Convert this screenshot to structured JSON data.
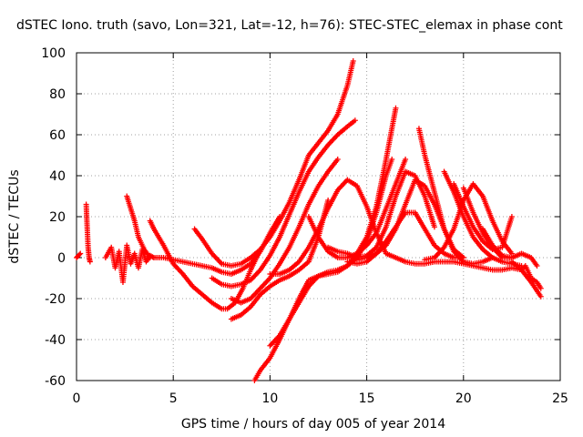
{
  "chart_data": {
    "type": "scatter",
    "title": "dSTEC Iono. truth (savo, Lon=321, Lat=-12, h=76): STEC-STEC_elemax in phase cont",
    "xlabel": "GPS time / hours of day 005 of year 2014",
    "ylabel": "dSTEC  / TECUs",
    "xlim": [
      0,
      25
    ],
    "ylim": [
      -60,
      100
    ],
    "xticks": [
      "0",
      "5",
      "10",
      "15",
      "20",
      "25"
    ],
    "yticks": [
      "-60",
      "-40",
      "-20",
      "0",
      "20",
      "40",
      "60",
      "80",
      "100"
    ],
    "grid": true,
    "marker": "plus",
    "color": "#ff0000",
    "series": [
      {
        "x": [
          0.0,
          0.1,
          0.2
        ],
        "y": [
          0,
          1,
          2
        ]
      },
      {
        "x": [
          0.5,
          0.55,
          0.6,
          0.65,
          0.7
        ],
        "y": [
          26,
          15,
          5,
          0,
          -2
        ]
      },
      {
        "x": [
          1.5,
          1.8,
          2.0,
          2.2,
          2.4,
          2.6,
          2.8,
          3.0,
          3.2,
          3.4,
          3.6,
          3.8,
          4.0
        ],
        "y": [
          0,
          5,
          -5,
          3,
          -12,
          6,
          -3,
          2,
          -5,
          4,
          -2,
          1,
          0
        ]
      },
      {
        "x": [
          2.6,
          2.8,
          3.0,
          3.2,
          3.5,
          3.8
        ],
        "y": [
          30,
          24,
          18,
          10,
          4,
          0
        ]
      },
      {
        "x": [
          3.8,
          4.0,
          4.5,
          5.0,
          5.5,
          6.0,
          6.5,
          7.0,
          7.5,
          7.8,
          8.2,
          8.6,
          9.0,
          9.4
        ],
        "y": [
          18,
          14,
          6,
          -3,
          -8,
          -14,
          -18,
          -22,
          -25,
          -25,
          -22,
          -15,
          -6,
          2
        ]
      },
      {
        "x": [
          4.0,
          4.5,
          5.0,
          5.5,
          6.0,
          6.5,
          7.0,
          7.5,
          8.0,
          8.5,
          9.0,
          9.5,
          10.0,
          10.5
        ],
        "y": [
          0,
          0,
          -1,
          -2,
          -3,
          -4,
          -5,
          -7,
          -8,
          -6,
          -3,
          3,
          12,
          20
        ]
      },
      {
        "x": [
          6.1,
          6.5,
          7.0,
          7.5,
          8.0,
          8.5,
          9.0,
          9.5,
          10.0,
          10.5,
          11.0,
          11.5,
          12.0,
          12.5,
          13.0,
          13.5,
          14.0,
          14.3
        ],
        "y": [
          14,
          9,
          2,
          -3,
          -4,
          -3,
          0,
          4,
          10,
          18,
          27,
          38,
          50,
          56,
          62,
          70,
          84,
          96
        ]
      },
      {
        "x": [
          7.0,
          7.5,
          8.0,
          8.5,
          9.0,
          9.5,
          10.0,
          10.5,
          11.0,
          11.5,
          12.0,
          12.5,
          13.0,
          13.5,
          14.0,
          14.4
        ],
        "y": [
          -10,
          -13,
          -14,
          -13,
          -11,
          -6,
          1,
          10,
          21,
          32,
          42,
          49,
          55,
          60,
          64,
          67
        ]
      },
      {
        "x": [
          8.0,
          8.5,
          9.0,
          9.5,
          10.0,
          10.5,
          11.0,
          11.5,
          12.0,
          12.5,
          13.0,
          13.5
        ],
        "y": [
          -20,
          -22,
          -20,
          -15,
          -10,
          -3,
          5,
          15,
          26,
          35,
          42,
          48
        ]
      },
      {
        "x": [
          8.0,
          8.5,
          9.0,
          9.5,
          10.0,
          10.5,
          11.0,
          11.5,
          12.0,
          12.5,
          13.0
        ],
        "y": [
          -30,
          -28,
          -24,
          -18,
          -14,
          -11,
          -9,
          -6,
          -2,
          10,
          28
        ]
      },
      {
        "x": [
          9.2,
          9.5,
          10.0,
          10.5,
          11.0,
          11.5,
          12.0,
          12.5,
          13.0,
          13.5,
          14.0,
          14.5,
          15.0,
          15.5,
          16.0,
          16.3
        ],
        "y": [
          -60,
          -55,
          -49,
          -40,
          -30,
          -20,
          -11,
          -9,
          -8,
          -7,
          -4,
          0,
          8,
          22,
          40,
          48
        ]
      },
      {
        "x": [
          10.0,
          10.5,
          11.0,
          11.5,
          12.0,
          12.5,
          13.0,
          13.5,
          14.0,
          14.5,
          15.0,
          15.5,
          16.0,
          16.5
        ],
        "y": [
          -43,
          -38,
          -30,
          -22,
          -14,
          -9,
          -7,
          -6,
          -4,
          2,
          10,
          25,
          48,
          73
        ]
      },
      {
        "x": [
          10.0,
          10.5,
          11.0,
          11.5,
          12.0,
          12.5,
          13.0,
          13.5,
          14.0,
          14.5,
          15.0,
          15.5,
          16.0
        ],
        "y": [
          -8,
          -8,
          -6,
          -2,
          5,
          14,
          24,
          33,
          38,
          35,
          25,
          12,
          2
        ]
      },
      {
        "x": [
          12.0,
          12.5,
          13.0,
          13.5,
          14.0,
          14.5,
          15.0,
          15.5,
          16.0,
          16.5,
          17.0
        ],
        "y": [
          20,
          10,
          3,
          0,
          0,
          2,
          6,
          12,
          24,
          36,
          48
        ]
      },
      {
        "x": [
          13.0,
          13.5,
          14.0,
          14.5,
          15.0,
          15.5,
          16.0,
          16.5,
          17.0,
          17.5,
          18.0,
          18.5
        ],
        "y": [
          5,
          3,
          2,
          0,
          1,
          5,
          15,
          30,
          42,
          40,
          30,
          15
        ]
      },
      {
        "x": [
          14.0,
          14.5,
          15.0,
          15.5,
          16.0,
          16.5,
          17.0,
          17.5,
          18.0,
          18.5,
          19.0,
          19.5,
          20.0
        ],
        "y": [
          -2,
          -3,
          -2,
          2,
          8,
          15,
          22,
          22,
          14,
          6,
          2,
          0,
          0
        ]
      },
      {
        "x": [
          14.5,
          15.0,
          15.5,
          16.0,
          16.5,
          17.0,
          17.5,
          18.0,
          18.5,
          19.0,
          19.5,
          20.0
        ],
        "y": [
          -1,
          0,
          2,
          6,
          14,
          26,
          38,
          35,
          26,
          14,
          4,
          0
        ]
      },
      {
        "x": [
          16.0,
          16.5,
          17.0,
          17.5,
          18.0,
          18.5,
          19.0,
          19.5,
          20.0,
          20.5,
          21.0,
          21.5,
          22.0,
          22.5,
          23.0,
          23.5,
          24.0
        ],
        "y": [
          2,
          0,
          -2,
          -3,
          -3,
          -2,
          -2,
          -2,
          -3,
          -4,
          -5,
          -6,
          -6,
          -5,
          -6,
          -12,
          -19
        ]
      },
      {
        "x": [
          17.7,
          18.0,
          18.5,
          19.0,
          19.5,
          20.0,
          20.5,
          21.0,
          21.5
        ],
        "y": [
          63,
          50,
          32,
          14,
          3,
          -2,
          -3,
          -2,
          0
        ]
      },
      {
        "x": [
          18.0,
          18.5,
          19.0,
          19.5,
          20.0,
          20.5,
          21.0,
          21.5,
          22.0,
          22.5
        ],
        "y": [
          -1,
          0,
          5,
          14,
          28,
          36,
          30,
          18,
          8,
          2
        ]
      },
      {
        "x": [
          19.0,
          19.5,
          20.0,
          20.5,
          21.0,
          21.5,
          22.0,
          22.5,
          23.0
        ],
        "y": [
          42,
          32,
          20,
          10,
          4,
          0,
          -2,
          -3,
          -4
        ]
      },
      {
        "x": [
          19.5,
          20.0,
          20.5,
          21.0,
          21.5,
          22.0,
          22.5
        ],
        "y": [
          36,
          25,
          15,
          8,
          4,
          5,
          20
        ]
      },
      {
        "x": [
          20.0,
          20.5,
          21.0,
          21.5,
          22.0,
          22.5
        ],
        "y": [
          34,
          22,
          12,
          5,
          0,
          0
        ]
      },
      {
        "x": [
          21.0,
          21.5,
          22.0,
          22.5,
          23.0,
          23.5,
          23.8
        ],
        "y": [
          14,
          6,
          1,
          0,
          2,
          0,
          -4
        ]
      },
      {
        "x": [
          22.5,
          23.0,
          23.2,
          23.5,
          23.8,
          24.0
        ],
        "y": [
          -2,
          -6,
          -4,
          -10,
          -12,
          -15
        ]
      }
    ]
  }
}
